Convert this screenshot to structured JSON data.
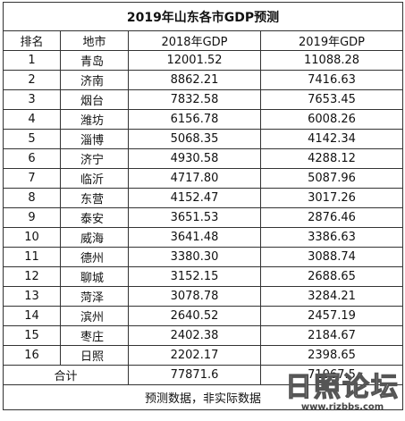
{
  "title": "2019年山东各市GDP预测",
  "table": {
    "header": [
      "排名",
      "地市",
      "2018年GDP",
      "2019年GDP"
    ],
    "rows": [
      [
        "1",
        "青岛",
        "12001.52",
        "11088.28"
      ],
      [
        "2",
        "济南",
        "8862.21",
        "7416.63"
      ],
      [
        "3",
        "烟台",
        "7832.58",
        "7653.45"
      ],
      [
        "4",
        "潍坊",
        "6156.78",
        "6008.26"
      ],
      [
        "5",
        "淄博",
        "5068.35",
        "4142.34"
      ],
      [
        "6",
        "济宁",
        "4930.58",
        "4288.12"
      ],
      [
        "7",
        "临沂",
        "4717.80",
        "5087.96"
      ],
      [
        "8",
        "东营",
        "4152.47",
        "3017.26"
      ],
      [
        "9",
        "泰安",
        "3651.53",
        "2876.46"
      ],
      [
        "10",
        "威海",
        "3641.48",
        "3386.63"
      ],
      [
        "11",
        "德州",
        "3380.30",
        "3088.74"
      ],
      [
        "12",
        "聊城",
        "3152.15",
        "2688.65"
      ],
      [
        "13",
        "菏泽",
        "3078.78",
        "3284.21"
      ],
      [
        "14",
        "滨州",
        "2640.52",
        "2457.19"
      ],
      [
        "15",
        "枣庄",
        "2402.38",
        "2184.67"
      ],
      [
        "16",
        "日照",
        "2202.17",
        "2398.65"
      ]
    ],
    "total": [
      "合计",
      "77871.6",
      "71067.5"
    ],
    "note": "预测数据，非实际数据"
  },
  "watermark": {
    "name": "日照论坛",
    "url": "www.rizbbs.com"
  }
}
